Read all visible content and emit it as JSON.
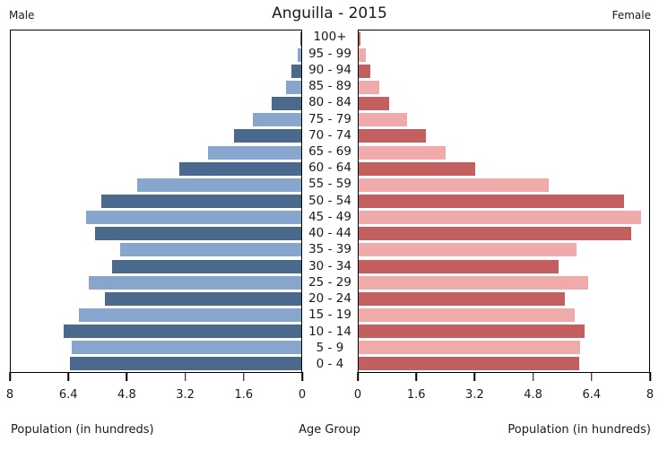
{
  "title": "Anguilla - 2015",
  "left_header": "Male",
  "right_header": "Female",
  "labels": {
    "left_axis_title": "Population (in hundreds)",
    "center_axis_title": "Age Group",
    "right_axis_title": "Population (in hundreds)"
  },
  "axis": {
    "left_ticks": [
      "8",
      "6.4",
      "4.8",
      "3.2",
      "1.6",
      "0"
    ],
    "right_ticks": [
      "0",
      "1.6",
      "3.2",
      "4.8",
      "6.4",
      "8"
    ]
  },
  "colors": {
    "male_dark": "#4b698c",
    "male_light": "#87a5cd",
    "female_dark": "#c35f5f",
    "female_light": "#f0aaaa",
    "axis": "#000000",
    "text": "#1a1a1a",
    "background": "#ffffff"
  },
  "chart_data": {
    "type": "bar",
    "subtype": "population-pyramid",
    "title": "Anguilla - 2015",
    "xlabel": "Population (in hundreds)",
    "ylabel": "Age Group",
    "xlim": [
      0,
      8
    ],
    "xticks": [
      0,
      1.6,
      3.2,
      4.8,
      6.4,
      8
    ],
    "grid": false,
    "legend_position": "none",
    "categories": [
      "100+",
      "95 - 99",
      "90 - 94",
      "85 - 89",
      "80 - 84",
      "75 - 79",
      "70 - 74",
      "65 - 69",
      "60 - 64",
      "55 - 59",
      "50 - 54",
      "45 - 49",
      "40 - 44",
      "35 - 39",
      "30 - 34",
      "25 - 29",
      "20 - 24",
      "15 - 19",
      "10 - 14",
      "5 - 9",
      "0 - 4"
    ],
    "series": [
      {
        "name": "Male",
        "side": "left",
        "values": [
          0.03,
          0.09,
          0.27,
          0.43,
          0.82,
          1.33,
          1.85,
          2.58,
          3.37,
          4.52,
          5.5,
          5.92,
          5.67,
          4.98,
          5.21,
          5.86,
          5.42,
          6.12,
          6.55,
          6.33,
          6.36
        ]
      },
      {
        "name": "Female",
        "side": "right",
        "values": [
          0.05,
          0.2,
          0.33,
          0.57,
          0.84,
          1.33,
          1.84,
          2.4,
          3.2,
          5.23,
          7.31,
          7.78,
          7.51,
          6.01,
          5.51,
          6.31,
          5.67,
          5.95,
          6.21,
          6.11,
          6.07
        ]
      }
    ]
  }
}
